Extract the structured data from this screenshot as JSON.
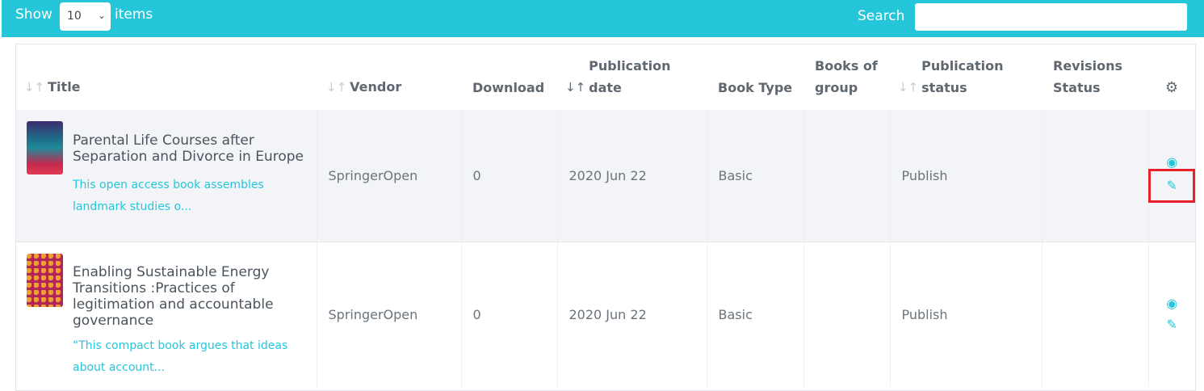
{
  "toolbar": {
    "show_label": "Show",
    "page_size": "10",
    "items_label": "items",
    "search_label": "Search",
    "search_value": ""
  },
  "table": {
    "columns": [
      {
        "label": "Title",
        "sortable": true
      },
      {
        "label": "Vendor",
        "sortable": true
      },
      {
        "label": "Download",
        "sortable": false
      },
      {
        "label": "Publication date",
        "sortable": true
      },
      {
        "label": "Book Type",
        "sortable": false
      },
      {
        "label": "Books of group",
        "sortable": false
      },
      {
        "label": "Publication status",
        "sortable": true
      },
      {
        "label": "Revisions Status",
        "sortable": false
      }
    ],
    "settings_icon": "gears-icon",
    "rows": [
      {
        "title": "Parental Life Courses after Separation and Divorce in Europe",
        "description": "This open access book assembles landmark studies o...",
        "vendor": "SpringerOpen",
        "download": "0",
        "publication_date": "2020 Jun 22",
        "book_type": "Basic",
        "books_of_group": "",
        "publication_status": "Publish",
        "revisions_status": ""
      },
      {
        "title": "Enabling Sustainable Energy Transitions :Practices of legitimation and accountable governance",
        "description": "“This compact book argues that ideas about account...",
        "vendor": "SpringerOpen",
        "download": "0",
        "publication_date": "2020 Jun 22",
        "book_type": "Basic",
        "books_of_group": "",
        "publication_status": "Publish",
        "revisions_status": ""
      }
    ]
  },
  "colors": {
    "accent": "#26c6da",
    "highlight": "#e8202a",
    "row_alt": "#f3f4f7"
  }
}
